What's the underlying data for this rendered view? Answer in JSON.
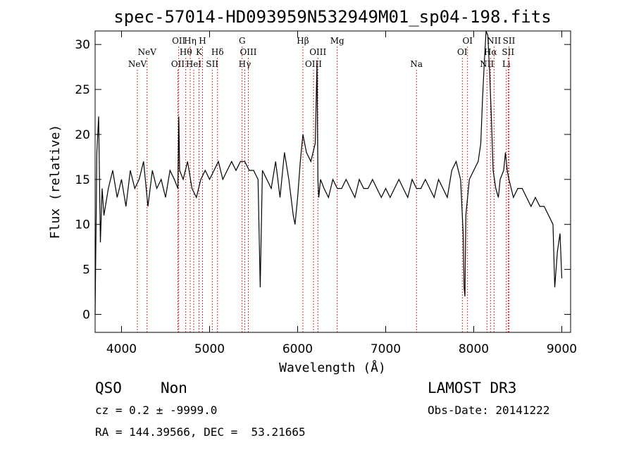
{
  "chart_data": {
    "type": "line",
    "title": "spec-57014-HD093959N532949M01_sp04-198.fits",
    "xlabel": "Wavelength (Å)",
    "ylabel": "Flux (relative)",
    "xlim": [
      3700,
      9100
    ],
    "ylim": [
      -2,
      31.5
    ],
    "xticks": [
      4000,
      5000,
      6000,
      7000,
      8000,
      9000
    ],
    "yticks": [
      0,
      5,
      10,
      15,
      20,
      25,
      30
    ],
    "series": [
      {
        "name": "spectrum",
        "x": [
          3700,
          3720,
          3740,
          3760,
          3780,
          3800,
          3850,
          3900,
          3950,
          4000,
          4050,
          4100,
          4150,
          4200,
          4250,
          4300,
          4350,
          4400,
          4450,
          4500,
          4550,
          4600,
          4640,
          4650,
          4660,
          4700,
          4750,
          4800,
          4850,
          4900,
          4950,
          5000,
          5050,
          5100,
          5150,
          5200,
          5250,
          5300,
          5350,
          5400,
          5450,
          5500,
          5550,
          5575,
          5600,
          5650,
          5700,
          5750,
          5800,
          5850,
          5900,
          5950,
          5970,
          6000,
          6030,
          6060,
          6100,
          6150,
          6200,
          6220,
          6230,
          6240,
          6260,
          6300,
          6350,
          6400,
          6450,
          6500,
          6550,
          6600,
          6650,
          6700,
          6750,
          6800,
          6850,
          6900,
          6950,
          7000,
          7050,
          7100,
          7150,
          7200,
          7250,
          7300,
          7350,
          7400,
          7450,
          7500,
          7550,
          7600,
          7650,
          7700,
          7750,
          7800,
          7850,
          7870,
          7880,
          7890,
          7900,
          7910,
          7920,
          7950,
          8000,
          8050,
          8080,
          8100,
          8120,
          8140,
          8160,
          8180,
          8200,
          8220,
          8250,
          8280,
          8300,
          8340,
          8360,
          8380,
          8400,
          8450,
          8500,
          8550,
          8600,
          8650,
          8700,
          8750,
          8800,
          8850,
          8900,
          8920,
          8950,
          8980,
          9000
        ],
        "y": [
          0,
          18,
          22,
          8,
          14,
          11,
          14,
          16,
          13,
          15,
          12,
          16,
          14,
          15,
          17,
          12,
          16,
          14,
          15,
          13,
          16,
          15,
          14,
          22,
          16,
          15,
          17,
          14,
          13,
          15,
          16,
          15,
          16,
          17,
          15,
          16,
          17,
          16,
          17,
          17,
          16,
          16,
          15,
          3,
          16,
          15,
          14,
          17,
          13,
          18,
          15,
          11,
          10,
          13,
          17,
          20,
          18,
          17,
          19,
          28,
          15,
          13,
          15,
          14,
          13,
          15,
          14,
          14,
          15,
          14,
          13,
          15,
          14,
          14,
          15,
          14,
          13,
          14,
          13,
          14,
          15,
          14,
          13,
          15,
          14,
          14,
          15,
          14,
          13,
          15,
          14,
          13,
          16,
          17,
          15,
          11,
          9,
          3,
          2,
          11,
          12,
          15,
          16,
          17,
          19,
          24,
          28,
          32,
          31,
          27,
          22,
          16,
          14,
          13,
          15,
          16,
          18,
          16,
          15,
          13,
          14,
          14,
          13,
          12,
          13,
          12,
          12,
          11,
          10,
          3,
          7,
          9,
          4
        ],
        "color": "#000000"
      }
    ],
    "line_markers": [
      {
        "wavelength": 4180,
        "label": "NeV",
        "row": 2
      },
      {
        "wavelength": 4290,
        "label": "NeV",
        "row": 1
      },
      {
        "wavelength": 4640,
        "label": "OII",
        "row": 2
      },
      {
        "wavelength": 4650,
        "label": "OII",
        "row": 0
      },
      {
        "wavelength": 4730,
        "label": "Hθ",
        "row": 1
      },
      {
        "wavelength": 4780,
        "label": "Hη",
        "row": 0
      },
      {
        "wavelength": 4820,
        "label": "HeI",
        "row": 2
      },
      {
        "wavelength": 4880,
        "label": "K",
        "row": 1
      },
      {
        "wavelength": 4920,
        "label": "H",
        "row": 0
      },
      {
        "wavelength": 5030,
        "label": "SII",
        "row": 2
      },
      {
        "wavelength": 5090,
        "label": "Hδ",
        "row": 1
      },
      {
        "wavelength": 5370,
        "label": "G",
        "row": 0
      },
      {
        "wavelength": 5400,
        "label": "Hγ",
        "row": 2
      },
      {
        "wavelength": 5440,
        "label": "OIII",
        "row": 1
      },
      {
        "wavelength": 6060,
        "label": "Hβ",
        "row": 0
      },
      {
        "wavelength": 6180,
        "label": "OIII",
        "row": 2
      },
      {
        "wavelength": 6230,
        "label": "OIII",
        "row": 1
      },
      {
        "wavelength": 6450,
        "label": "Mg",
        "row": 0
      },
      {
        "wavelength": 7350,
        "label": "Na",
        "row": 2
      },
      {
        "wavelength": 7870,
        "label": "OI",
        "row": 1
      },
      {
        "wavelength": 7930,
        "label": "OI",
        "row": 0
      },
      {
        "wavelength": 8150,
        "label": "NII",
        "row": 2
      },
      {
        "wavelength": 8190,
        "label": "Hα",
        "row": 1
      },
      {
        "wavelength": 8230,
        "label": "NII",
        "row": 0
      },
      {
        "wavelength": 8370,
        "label": "Li",
        "row": 2
      },
      {
        "wavelength": 8390,
        "label": "SII",
        "row": 1
      },
      {
        "wavelength": 8400,
        "label": "SII",
        "row": 0
      }
    ]
  },
  "info": {
    "class": "QSO",
    "subclass": "Non",
    "cz": "cz = 0.2 ± -9999.0",
    "coords": "RA = 144.39566, DEC =  53.21665",
    "survey": "LAMOST DR3",
    "obs_date": "Obs-Date: 20141222"
  }
}
